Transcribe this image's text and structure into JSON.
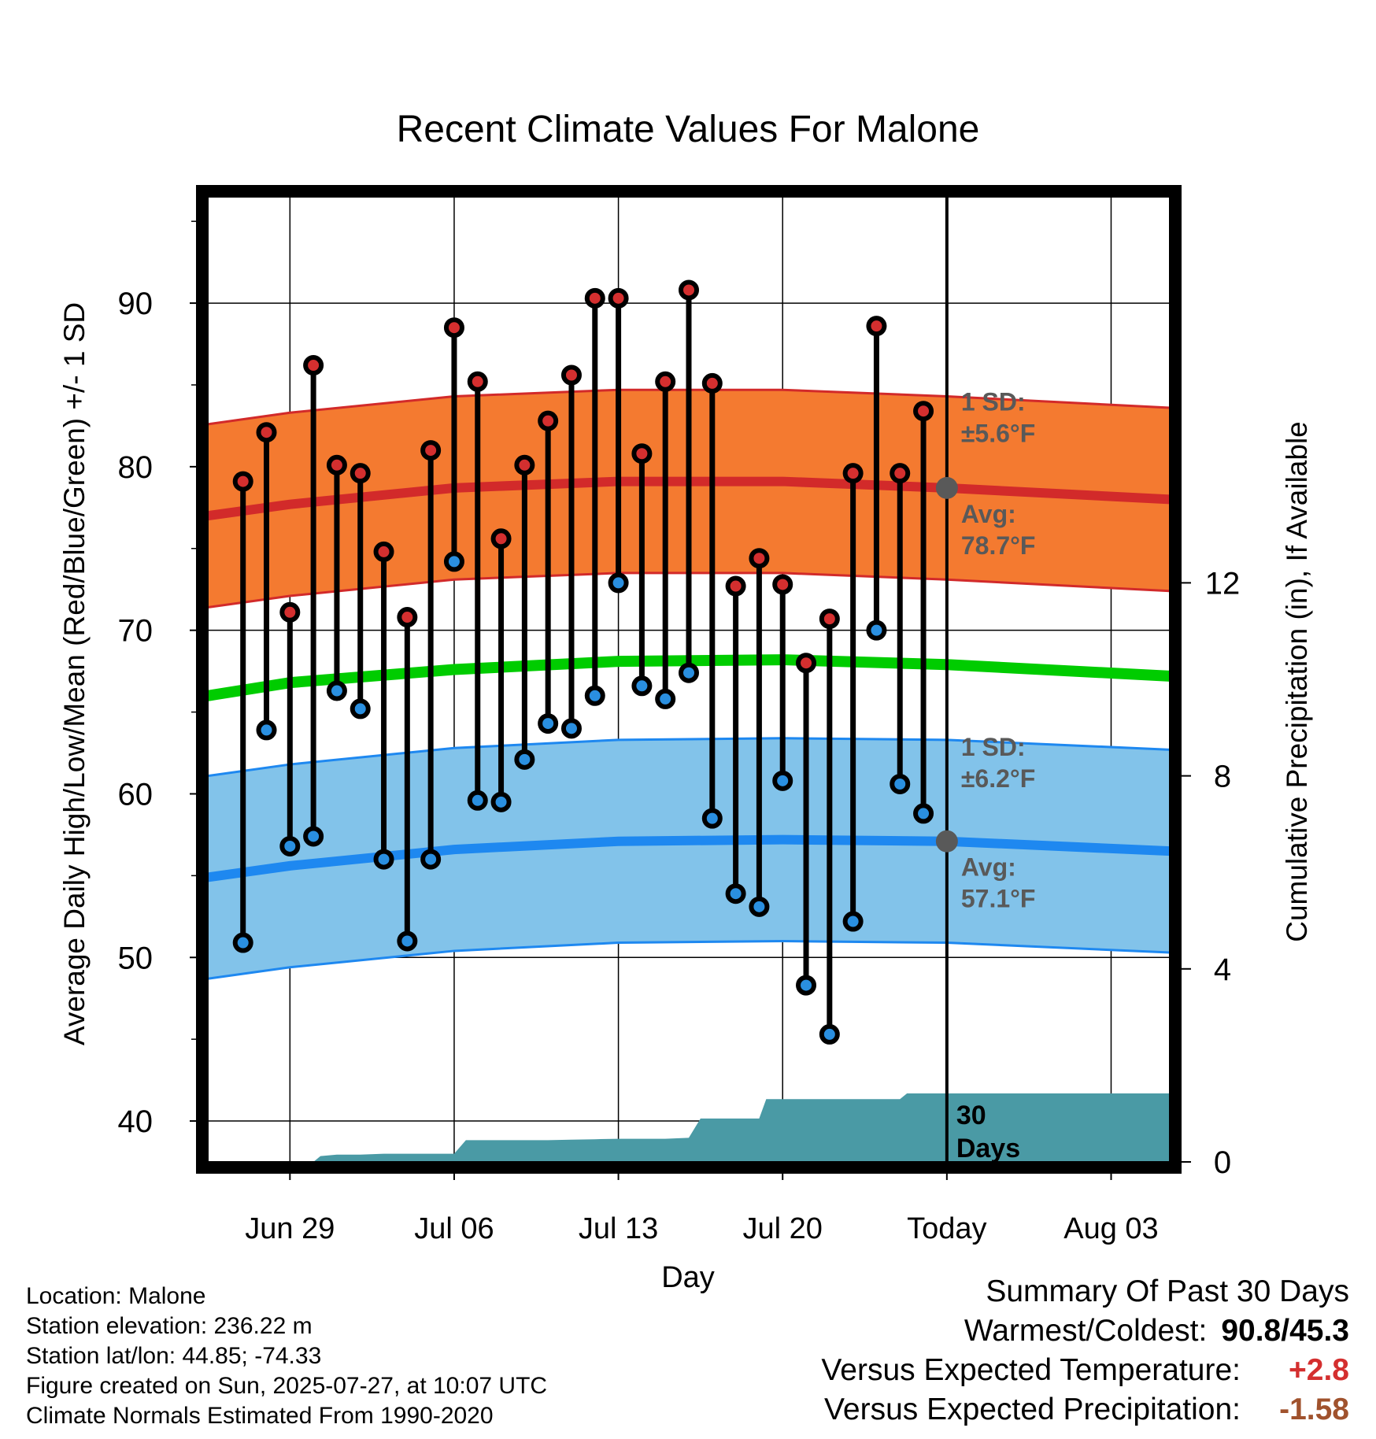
{
  "chart_data": {
    "type": "line",
    "title": "Recent Climate Values For Malone",
    "xlabel": "Day",
    "ylabel": "Average Daily High/Low/Mean (Red/Blue/Green) +/- 1 SD",
    "y2label": "Cumulative Precipitation (in), If Available",
    "xlim": [
      -3.5,
      37.5
    ],
    "ylim": [
      37.5,
      96.5
    ],
    "y2lim": [
      0,
      20
    ],
    "x_ticks": [
      {
        "x": 0,
        "label": "Jun 29"
      },
      {
        "x": 7,
        "label": "Jul 06"
      },
      {
        "x": 14,
        "label": "Jul 13"
      },
      {
        "x": 21,
        "label": "Jul 20"
      },
      {
        "x": 28,
        "label": "Today"
      },
      {
        "x": 35,
        "label": "Aug 03"
      }
    ],
    "y_ticks": [
      40,
      50,
      60,
      70,
      80,
      90
    ],
    "y2_ticks": [
      0,
      4,
      8,
      12
    ],
    "grid": true,
    "today_x": 28,
    "normals": {
      "x": [
        -3.5,
        0,
        7,
        14,
        21,
        28,
        37.5
      ],
      "high_avg": [
        77.0,
        77.7,
        78.7,
        79.1,
        79.1,
        78.7,
        78.0
      ],
      "high_sd": 5.6,
      "low_avg": [
        54.9,
        55.6,
        56.6,
        57.1,
        57.2,
        57.1,
        56.5
      ],
      "low_sd": 6.2,
      "mean_avg": [
        66.0,
        66.8,
        67.6,
        68.1,
        68.2,
        67.9,
        67.2
      ]
    },
    "series": [
      {
        "name": "High",
        "color": "#d42f2f",
        "x": [
          -2,
          -1,
          0,
          1,
          2,
          3,
          4,
          5,
          6,
          7,
          8,
          9,
          10,
          11,
          12,
          13,
          14,
          15,
          16,
          17,
          18,
          19,
          20,
          21,
          22,
          23,
          24,
          25,
          26,
          27
        ],
        "values": [
          79.1,
          82.1,
          71.1,
          86.2,
          80.1,
          79.6,
          74.8,
          70.8,
          81.0,
          88.5,
          85.2,
          75.6,
          80.1,
          82.8,
          85.6,
          90.3,
          90.3,
          80.8,
          85.2,
          90.8,
          85.1,
          72.7,
          74.4,
          72.8,
          68.0,
          70.7,
          79.6,
          88.6,
          79.6,
          83.4
        ]
      },
      {
        "name": "Low",
        "color": "#2a8fe0",
        "x": [
          -2,
          -1,
          0,
          1,
          2,
          3,
          4,
          5,
          6,
          7,
          8,
          9,
          10,
          11,
          12,
          13,
          14,
          15,
          16,
          17,
          18,
          19,
          20,
          21,
          22,
          23,
          24,
          25,
          26,
          27
        ],
        "values": [
          50.9,
          63.9,
          56.8,
          57.4,
          66.3,
          65.2,
          56.0,
          51.0,
          56.0,
          74.2,
          59.6,
          59.5,
          62.1,
          64.3,
          64.0,
          66.0,
          72.9,
          66.6,
          65.8,
          67.4,
          58.5,
          53.9,
          53.1,
          60.8,
          48.3,
          45.3,
          52.2,
          70.0,
          60.6,
          58.8
        ]
      }
    ],
    "precip": {
      "x": [
        -3.5,
        -2,
        -1,
        0,
        1,
        1.3,
        2,
        3,
        4,
        5,
        6,
        7,
        7.5,
        8,
        9,
        10,
        11,
        12,
        13,
        14,
        15,
        16,
        17,
        17.5,
        18,
        19,
        20,
        20.3,
        21,
        22,
        23,
        24,
        25,
        26,
        26.3,
        27,
        28,
        37.5
      ],
      "values": [
        0,
        0,
        0,
        0,
        0,
        0.12,
        0.15,
        0.15,
        0.17,
        0.17,
        0.17,
        0.17,
        0.45,
        0.45,
        0.45,
        0.45,
        0.45,
        0.46,
        0.47,
        0.48,
        0.48,
        0.48,
        0.5,
        0.9,
        0.9,
        0.9,
        0.9,
        1.3,
        1.3,
        1.3,
        1.3,
        1.3,
        1.3,
        1.3,
        1.42,
        1.42,
        1.42,
        1.42
      ]
    },
    "annotations": {
      "high_sd_line1": "1 SD:",
      "high_sd_line2": "±5.6°F",
      "high_avg_line1": "Avg:",
      "high_avg_line2": "78.7°F",
      "low_sd_line1": "1 SD:",
      "low_sd_line2": "±6.2°F",
      "low_avg_line1": "Avg:",
      "low_avg_line2": "57.1°F",
      "days_line1": "30",
      "days_line2": "Days"
    }
  },
  "colors": {
    "high_band": "#f47a30",
    "high_line": "#d22a2a",
    "low_band": "#82c3ea",
    "low_line": "#1e88f0",
    "mean_line": "#00cc00",
    "precip_fill": "#4a9aa5",
    "marker_high": "#d42f2f",
    "marker_low": "#2a8fe0",
    "annotation_gray": "#595959",
    "plus_red": "#d42f2f",
    "minus_brown": "#a0522d"
  },
  "info": {
    "location": "Location: Malone",
    "elevation": "Station elevation: 236.22 m",
    "latlon": "Station lat/lon: 44.85; -74.33",
    "created": "Figure created on Sun, 2025-07-27, at 10:07 UTC",
    "normals": "Climate Normals Estimated From 1990-2020"
  },
  "summary": {
    "title": "Summary Of Past 30 Days",
    "warm_cold_label": "Warmest/Coldest:",
    "warm_cold_value": "90.8/45.3",
    "temp_label": "Versus Expected Temperature:",
    "temp_value": "+2.8",
    "precip_label": "Versus Expected Precipitation:",
    "precip_value": "-1.58"
  }
}
